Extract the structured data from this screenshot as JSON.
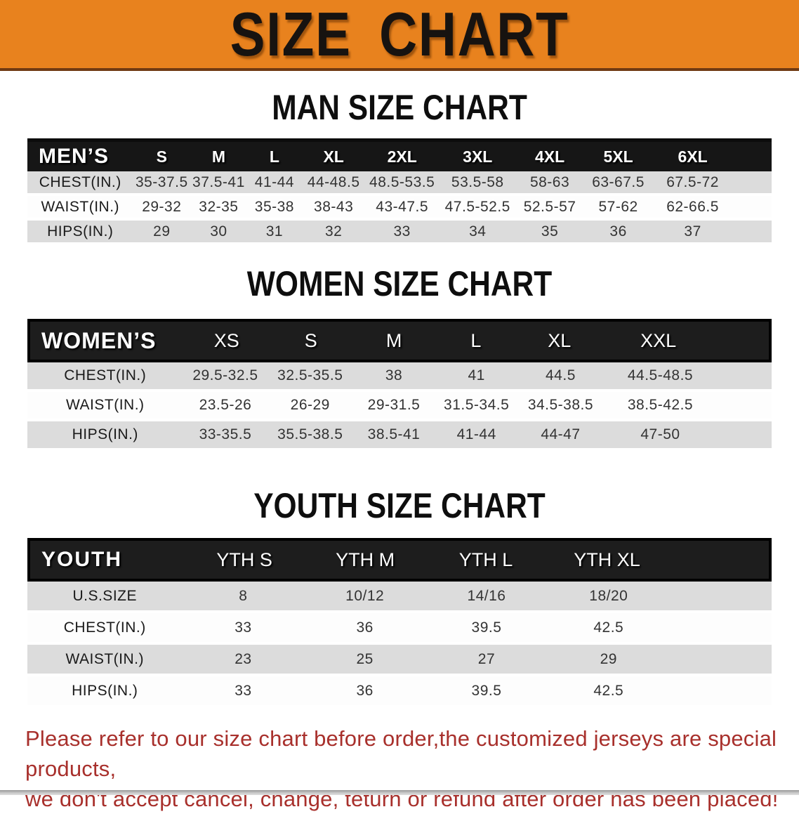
{
  "banner": {
    "title": "SIZE CHART",
    "bg_color": "#E8821E"
  },
  "sections": [
    {
      "heading": "MAN SIZE CHART",
      "group_label": "MEN’S",
      "columns": [
        "S",
        "M",
        "L",
        "XL",
        "2XL",
        "3XL",
        "4XL",
        "5XL",
        "6XL"
      ],
      "rows": [
        {
          "label": "CHEST(IN.)",
          "values": [
            "35-37.5",
            "37.5-41",
            "41-44",
            "44-48.5",
            "48.5-53.5",
            "53.5-58",
            "58-63",
            "63-67.5",
            "67.5-72"
          ]
        },
        {
          "label": "WAIST(IN.)",
          "values": [
            "29-32",
            "32-35",
            "35-38",
            "38-43",
            "43-47.5",
            "47.5-52.5",
            "52.5-57",
            "57-62",
            "62-66.5"
          ]
        },
        {
          "label": "HIPS(IN.)",
          "values": [
            "29",
            "30",
            "31",
            "32",
            "33",
            "34",
            "35",
            "36",
            "37"
          ]
        }
      ]
    },
    {
      "heading": "WOMEN SIZE CHART",
      "group_label": "WOMEN’S",
      "columns": [
        "XS",
        "S",
        "M",
        "L",
        "XL",
        "XXL"
      ],
      "rows": [
        {
          "label": "CHEST(IN.)",
          "values": [
            "29.5-32.5",
            "32.5-35.5",
            "38",
            "41",
            "44.5",
            "44.5-48.5"
          ]
        },
        {
          "label": "WAIST(IN.)",
          "values": [
            "23.5-26",
            "26-29",
            "29-31.5",
            "31.5-34.5",
            "34.5-38.5",
            "38.5-42.5"
          ]
        },
        {
          "label": "HIPS(IN.)",
          "values": [
            "33-35.5",
            "35.5-38.5",
            "38.5-41",
            "41-44",
            "44-47",
            "47-50"
          ]
        }
      ]
    },
    {
      "heading": "YOUTH SIZE CHART",
      "group_label": "YOUTH",
      "columns": [
        "YTH S",
        "YTH M",
        "YTH L",
        "YTH XL"
      ],
      "rows": [
        {
          "label": "U.S.SIZE",
          "values": [
            "8",
            "10/12",
            "14/16",
            "18/20"
          ]
        },
        {
          "label": "CHEST(IN.)",
          "values": [
            "33",
            "36",
            "39.5",
            "42.5"
          ]
        },
        {
          "label": "WAIST(IN.)",
          "values": [
            "23",
            "25",
            "27",
            "29"
          ]
        },
        {
          "label": "HIPS(IN.)",
          "values": [
            "33",
            "36",
            "39.5",
            "42.5"
          ]
        }
      ]
    }
  ],
  "disclaimer": {
    "line1": "Please refer to our size chart before order,the customized jerseys are special products,",
    "line2": "we don't accept cancel, change, teturn or refund after order has been placed!",
    "color": "#A8302C"
  }
}
